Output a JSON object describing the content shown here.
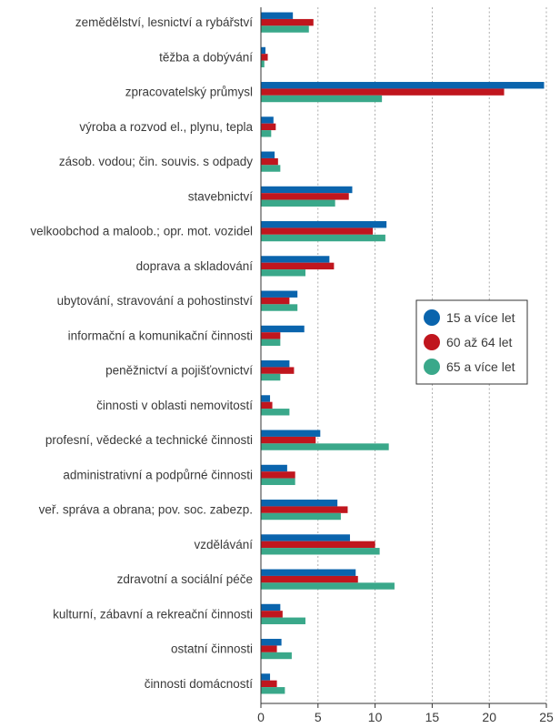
{
  "chart_data": {
    "type": "bar",
    "orientation": "horizontal",
    "categories": [
      "zemědělství, lesnictví a rybářství",
      "těžba a dobývání",
      "zpracovatelský průmysl",
      "výroba a rozvod el., plynu, tepla",
      "zásob. vodou; čin. souvis. s odpady",
      "stavebnictví",
      "velkoobchod a maloob.; opr. mot. vozidel",
      "doprava a skladování",
      "ubytování, stravování a pohostinství",
      "informační a komunikační činnosti",
      "peněžnictví a pojišťovnictví",
      "činnosti v oblasti nemovitostí",
      "profesní, vědecké a technické činnosti",
      "administrativní a podpůrné činnosti",
      "veř. správa a obrana; pov. soc. zabezp.",
      "vzdělávání",
      "zdravotní a sociální péče",
      "kulturní, zábavní a rekreační činnosti",
      "ostatní činnosti",
      "činnosti domácností"
    ],
    "series": [
      {
        "name": "15 a více let",
        "color": "#0a64ad",
        "values": [
          2.8,
          0.4,
          24.8,
          1.1,
          1.2,
          8.0,
          11.0,
          6.0,
          3.2,
          3.8,
          2.5,
          0.8,
          5.2,
          2.3,
          6.7,
          7.8,
          8.3,
          1.7,
          1.8,
          0.8
        ]
      },
      {
        "name": "60 až 64 let",
        "color": "#c0161e",
        "values": [
          4.6,
          0.6,
          21.3,
          1.3,
          1.5,
          7.7,
          9.8,
          6.4,
          2.5,
          1.7,
          2.9,
          1.0,
          4.8,
          3.0,
          7.6,
          10.0,
          8.5,
          1.9,
          1.4,
          1.4
        ]
      },
      {
        "name": "65 a více let",
        "color": "#3aa88a",
        "values": [
          4.2,
          0.3,
          10.6,
          0.9,
          1.7,
          6.5,
          10.9,
          3.9,
          3.2,
          1.7,
          1.7,
          2.5,
          11.2,
          3.0,
          7.0,
          10.4,
          11.7,
          3.9,
          2.7,
          2.1
        ]
      }
    ],
    "xlim": [
      0,
      25
    ],
    "xticks": [
      0,
      5,
      10,
      15,
      20,
      25
    ],
    "grid": "vertical-dashed",
    "legend_placement": "right-middle",
    "title": "",
    "xlabel": "",
    "ylabel": ""
  }
}
